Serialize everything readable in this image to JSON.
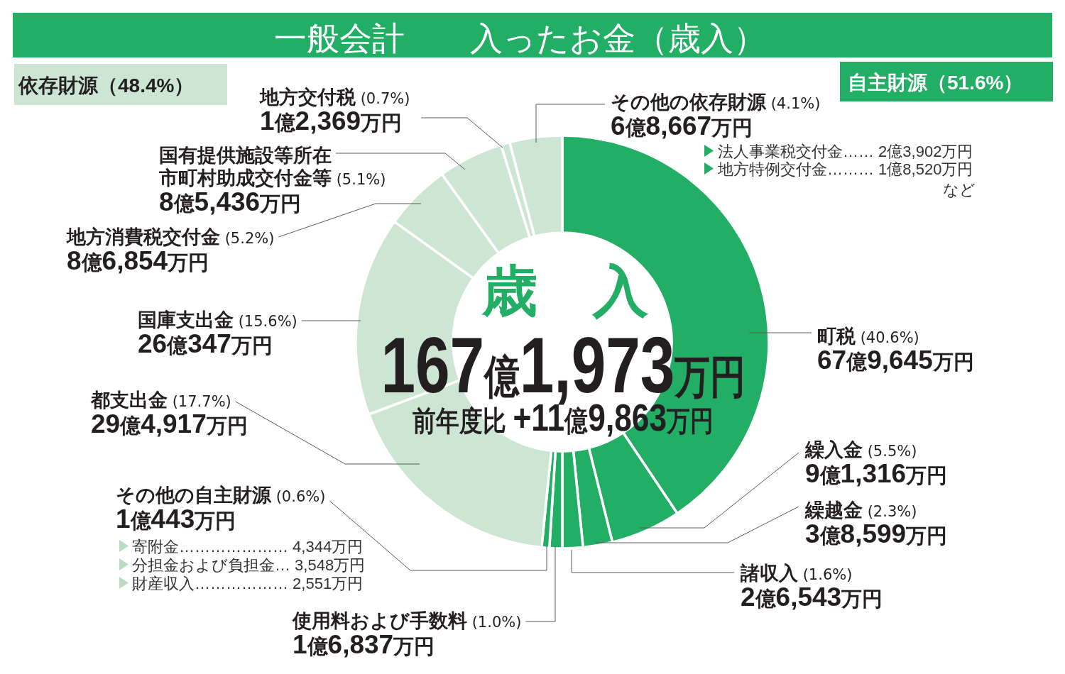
{
  "chart_data": {
    "type": "donut",
    "title": "一般会計　　入ったお金（歳入）",
    "categories": [
      "町税",
      "繰入金",
      "繰越金",
      "諸収入",
      "使用料および手数料",
      "その他の自主財源",
      "都支出金",
      "国庫支出金",
      "地方消費税交付金",
      "国有提供施設等所在市町村助成交付金等",
      "地方交付税",
      "その他の依存財源"
    ],
    "values": [
      40.6,
      5.5,
      2.3,
      1.6,
      1.0,
      0.6,
      17.7,
      15.6,
      5.2,
      5.1,
      0.7,
      4.1
    ],
    "colors": [
      "#22ae64",
      "#22ae64",
      "#22ae64",
      "#22ae64",
      "#22ae64",
      "#22ae64",
      "#cde6d3",
      "#cde6d3",
      "#cde6d3",
      "#cde6d3",
      "#cde6d3",
      "#cde6d3"
    ],
    "value_labels": [
      "(40.6%)",
      "(5.5%)",
      "(2.3%)",
      "(1.6%)",
      "(1.0%)",
      "(0.6%)",
      "(17.7%)",
      "(15.6%)",
      "(5.2%)",
      "(5.1%)",
      "(0.7%)",
      "(4.1%)"
    ],
    "annotations": [
      "依存財源（48.4%）",
      "自主財源（51.6%）",
      "歳　入",
      "167億1,973万円",
      "前年度比 +11億9,863万円",
      "法人事業税交付金…… 2億3,902万円",
      "地方特例交付金……… 1億8,520万円",
      "など",
      "寄附金………………… 4,344万円",
      "分担金および負担金… 3,548万円",
      "財産収入……………… 2,551万円",
      {
        "text": "67億9,645万円",
        "x": "町税"
      },
      {
        "text": "9億1,316万円",
        "x": "繰入金"
      },
      {
        "text": "3億8,599万円",
        "x": "繰越金"
      },
      {
        "text": "2億6,543万円",
        "x": "諸収入"
      },
      {
        "text": "1億6,837万円",
        "x": "使用料および手数料"
      },
      {
        "text": "1億443万円",
        "x": "その他の自主財源"
      },
      {
        "text": "29億4,917万円",
        "x": "都支出金"
      },
      {
        "text": "26億347万円",
        "x": "国庫支出金"
      },
      {
        "text": "8億6,854万円",
        "x": "地方消費税交付金"
      },
      {
        "text": "8億5,436万円",
        "x": "国有提供施設等所在市町村助成交付金等"
      },
      {
        "text": "1億2,369万円",
        "x": "地方交付税"
      },
      {
        "text": "6億8,667万円",
        "x": "その他の依存財源"
      }
    ]
  }
}
